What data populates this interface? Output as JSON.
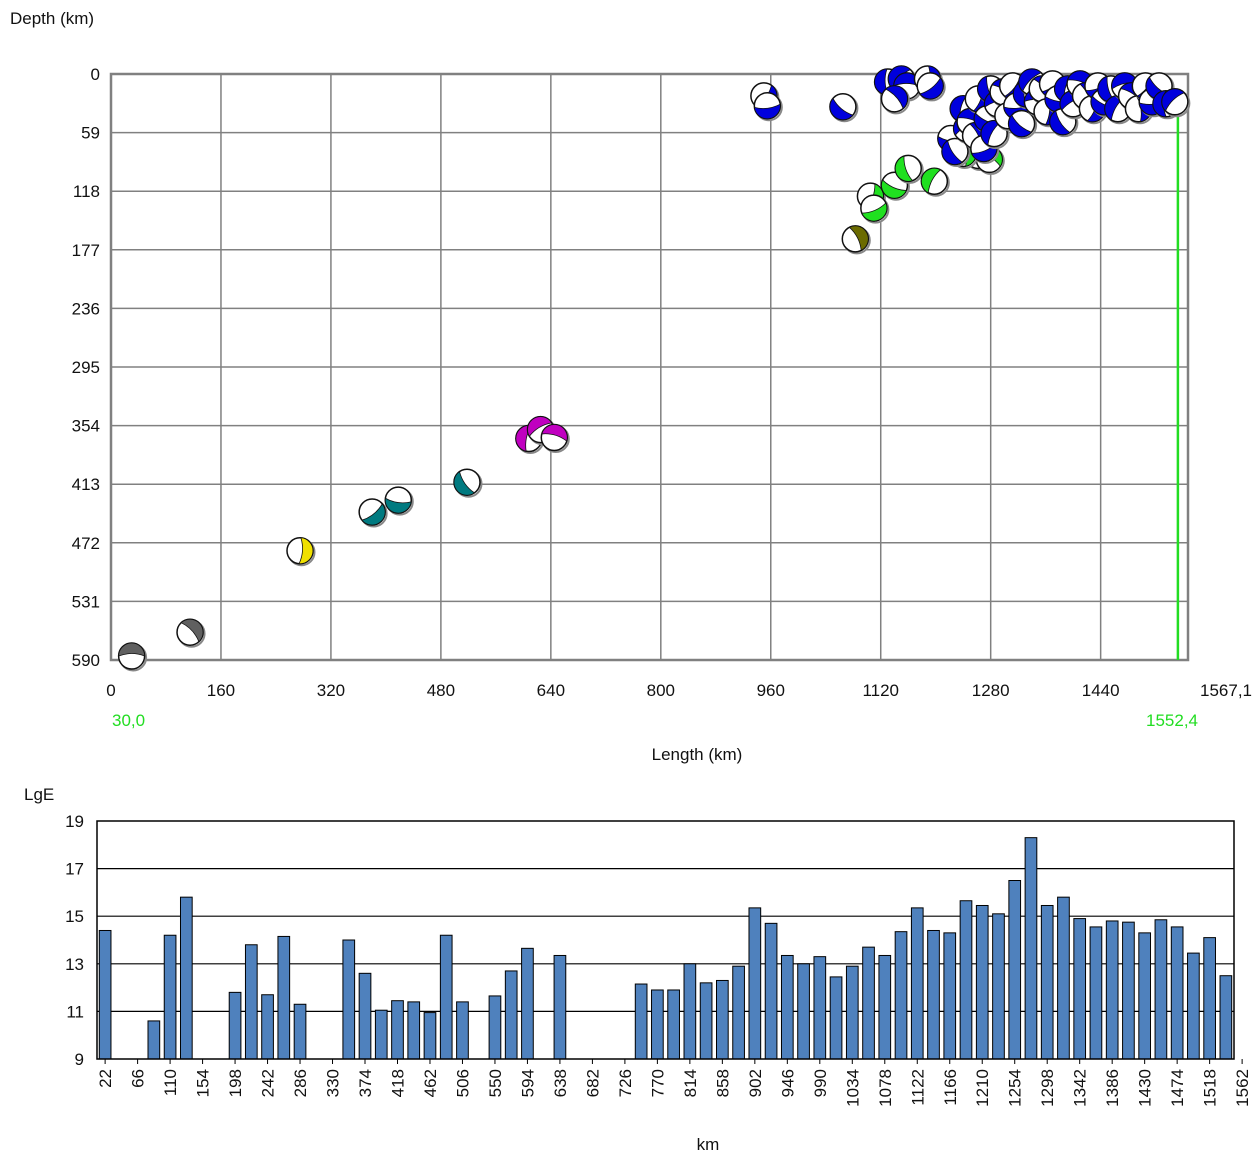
{
  "chart_data": [
    {
      "type": "scatter",
      "ylabel": "Depth (km)",
      "xlabel": "Length (km)",
      "x_ticks": [
        "0",
        "160",
        "320",
        "480",
        "640",
        "800",
        "960",
        "1120",
        "1280",
        "1440"
      ],
      "x_end_label": "1567,1",
      "y_ticks": [
        "0",
        "59",
        "118",
        "177",
        "236",
        "295",
        "354",
        "413",
        "472",
        "531",
        "590"
      ],
      "xlim": [
        0,
        1567.1
      ],
      "ylim": [
        0,
        590
      ],
      "y_inverted": true,
      "grid": true,
      "profile_start_label": "30,0",
      "profile_end_label": "1552,4",
      "profile_line_x": 1552.4,
      "colors": {
        "gray": "#606060",
        "yellow": "#f0e000",
        "teal": "#007a80",
        "magenta": "#c000c0",
        "olive": "#6b6b00",
        "green": "#20e020",
        "blue": "#0000dd",
        "marker_line": "#22dd22"
      },
      "points": [
        {
          "x": 30,
          "y": 586,
          "c": "gray"
        },
        {
          "x": 115,
          "y": 562,
          "c": "gray"
        },
        {
          "x": 275,
          "y": 480,
          "c": "yellow"
        },
        {
          "x": 380,
          "y": 441,
          "c": "teal"
        },
        {
          "x": 418,
          "y": 429,
          "c": "teal"
        },
        {
          "x": 518,
          "y": 411,
          "c": "teal"
        },
        {
          "x": 608,
          "y": 367,
          "c": "magenta"
        },
        {
          "x": 625,
          "y": 358,
          "c": "magenta"
        },
        {
          "x": 645,
          "y": 366,
          "c": "magenta"
        },
        {
          "x": 1083,
          "y": 166,
          "c": "olive"
        },
        {
          "x": 1105,
          "y": 123,
          "c": "green"
        },
        {
          "x": 1110,
          "y": 135,
          "c": "green"
        },
        {
          "x": 1140,
          "y": 112,
          "c": "green"
        },
        {
          "x": 1160,
          "y": 95,
          "c": "green"
        },
        {
          "x": 1198,
          "y": 108,
          "c": "green"
        },
        {
          "x": 1262,
          "y": 82,
          "c": "green"
        },
        {
          "x": 1278,
          "y": 86,
          "c": "green"
        },
        {
          "x": 1240,
          "y": 80,
          "c": "green"
        },
        {
          "x": 950,
          "y": 22,
          "c": "blue"
        },
        {
          "x": 955,
          "y": 32,
          "c": "blue"
        },
        {
          "x": 1065,
          "y": 33,
          "c": "blue"
        },
        {
          "x": 1130,
          "y": 8,
          "c": "blue"
        },
        {
          "x": 1150,
          "y": 5,
          "c": "blue"
        },
        {
          "x": 1158,
          "y": 12,
          "c": "blue"
        },
        {
          "x": 1140,
          "y": 25,
          "c": "blue"
        },
        {
          "x": 1188,
          "y": 5,
          "c": "blue"
        },
        {
          "x": 1192,
          "y": 12,
          "c": "blue"
        },
        {
          "x": 1222,
          "y": 65,
          "c": "blue"
        },
        {
          "x": 1228,
          "y": 78,
          "c": "blue"
        },
        {
          "x": 1240,
          "y": 35,
          "c": "blue"
        },
        {
          "x": 1245,
          "y": 55,
          "c": "blue"
        },
        {
          "x": 1250,
          "y": 48,
          "c": "blue"
        },
        {
          "x": 1258,
          "y": 62,
          "c": "blue"
        },
        {
          "x": 1262,
          "y": 25,
          "c": "blue"
        },
        {
          "x": 1270,
          "y": 75,
          "c": "blue"
        },
        {
          "x": 1275,
          "y": 45,
          "c": "blue"
        },
        {
          "x": 1280,
          "y": 15,
          "c": "blue"
        },
        {
          "x": 1285,
          "y": 60,
          "c": "blue"
        },
        {
          "x": 1290,
          "y": 30,
          "c": "blue"
        },
        {
          "x": 1298,
          "y": 18,
          "c": "blue"
        },
        {
          "x": 1305,
          "y": 42,
          "c": "blue"
        },
        {
          "x": 1312,
          "y": 12,
          "c": "blue"
        },
        {
          "x": 1318,
          "y": 32,
          "c": "blue"
        },
        {
          "x": 1325,
          "y": 50,
          "c": "blue"
        },
        {
          "x": 1332,
          "y": 20,
          "c": "blue"
        },
        {
          "x": 1340,
          "y": 8,
          "c": "blue"
        },
        {
          "x": 1348,
          "y": 28,
          "c": "blue"
        },
        {
          "x": 1355,
          "y": 15,
          "c": "blue"
        },
        {
          "x": 1362,
          "y": 38,
          "c": "blue"
        },
        {
          "x": 1370,
          "y": 10,
          "c": "blue"
        },
        {
          "x": 1378,
          "y": 25,
          "c": "blue"
        },
        {
          "x": 1385,
          "y": 48,
          "c": "blue"
        },
        {
          "x": 1392,
          "y": 15,
          "c": "blue"
        },
        {
          "x": 1400,
          "y": 30,
          "c": "blue"
        },
        {
          "x": 1410,
          "y": 10,
          "c": "blue"
        },
        {
          "x": 1418,
          "y": 22,
          "c": "blue"
        },
        {
          "x": 1428,
          "y": 35,
          "c": "blue"
        },
        {
          "x": 1436,
          "y": 12,
          "c": "blue"
        },
        {
          "x": 1445,
          "y": 28,
          "c": "blue"
        },
        {
          "x": 1455,
          "y": 15,
          "c": "blue"
        },
        {
          "x": 1465,
          "y": 35,
          "c": "blue"
        },
        {
          "x": 1475,
          "y": 12,
          "c": "blue"
        },
        {
          "x": 1485,
          "y": 22,
          "c": "blue"
        },
        {
          "x": 1495,
          "y": 35,
          "c": "blue"
        },
        {
          "x": 1505,
          "y": 12,
          "c": "blue"
        },
        {
          "x": 1515,
          "y": 28,
          "c": "blue"
        },
        {
          "x": 1525,
          "y": 12,
          "c": "blue"
        },
        {
          "x": 1535,
          "y": 30,
          "c": "blue"
        },
        {
          "x": 1548,
          "y": 28,
          "c": "blue"
        }
      ]
    },
    {
      "type": "bar",
      "ylabel": "LgE",
      "xlabel": "km",
      "ylim": [
        9,
        19
      ],
      "y_ticks": [
        "9",
        "11",
        "13",
        "15",
        "17",
        "19"
      ],
      "grid": true,
      "bar_color": "#4f81bd",
      "x_tick_labels": [
        "22",
        "66",
        "110",
        "154",
        "198",
        "242",
        "286",
        "330",
        "374",
        "418",
        "462",
        "506",
        "550",
        "594",
        "638",
        "682",
        "726",
        "770",
        "814",
        "858",
        "902",
        "946",
        "990",
        "1034",
        "1078",
        "1122",
        "1166",
        "1210",
        "1254",
        "1298",
        "1342",
        "1386",
        "1430",
        "1474",
        "1518",
        "1562"
      ],
      "bin_width_km": 22,
      "values": [
        14.4,
        0,
        0,
        10.6,
        14.2,
        15.8,
        0,
        0,
        11.8,
        13.8,
        11.7,
        14.15,
        11.3,
        0,
        0,
        14.0,
        12.6,
        11.05,
        11.45,
        11.4,
        10.95,
        14.2,
        11.4,
        0,
        11.65,
        12.7,
        13.65,
        0,
        13.35,
        0,
        0,
        0,
        0,
        12.15,
        11.9,
        11.9,
        13.0,
        12.2,
        12.3,
        12.9,
        15.35,
        14.7,
        13.35,
        13.0,
        13.3,
        12.45,
        12.9,
        13.7,
        13.35,
        14.35,
        15.35,
        14.4,
        14.3,
        15.65,
        15.45,
        15.1,
        16.5,
        18.3,
        15.45,
        15.8,
        14.9,
        14.55,
        14.8,
        14.75,
        14.3,
        14.85,
        14.55,
        13.45,
        14.1,
        12.5
      ]
    }
  ]
}
